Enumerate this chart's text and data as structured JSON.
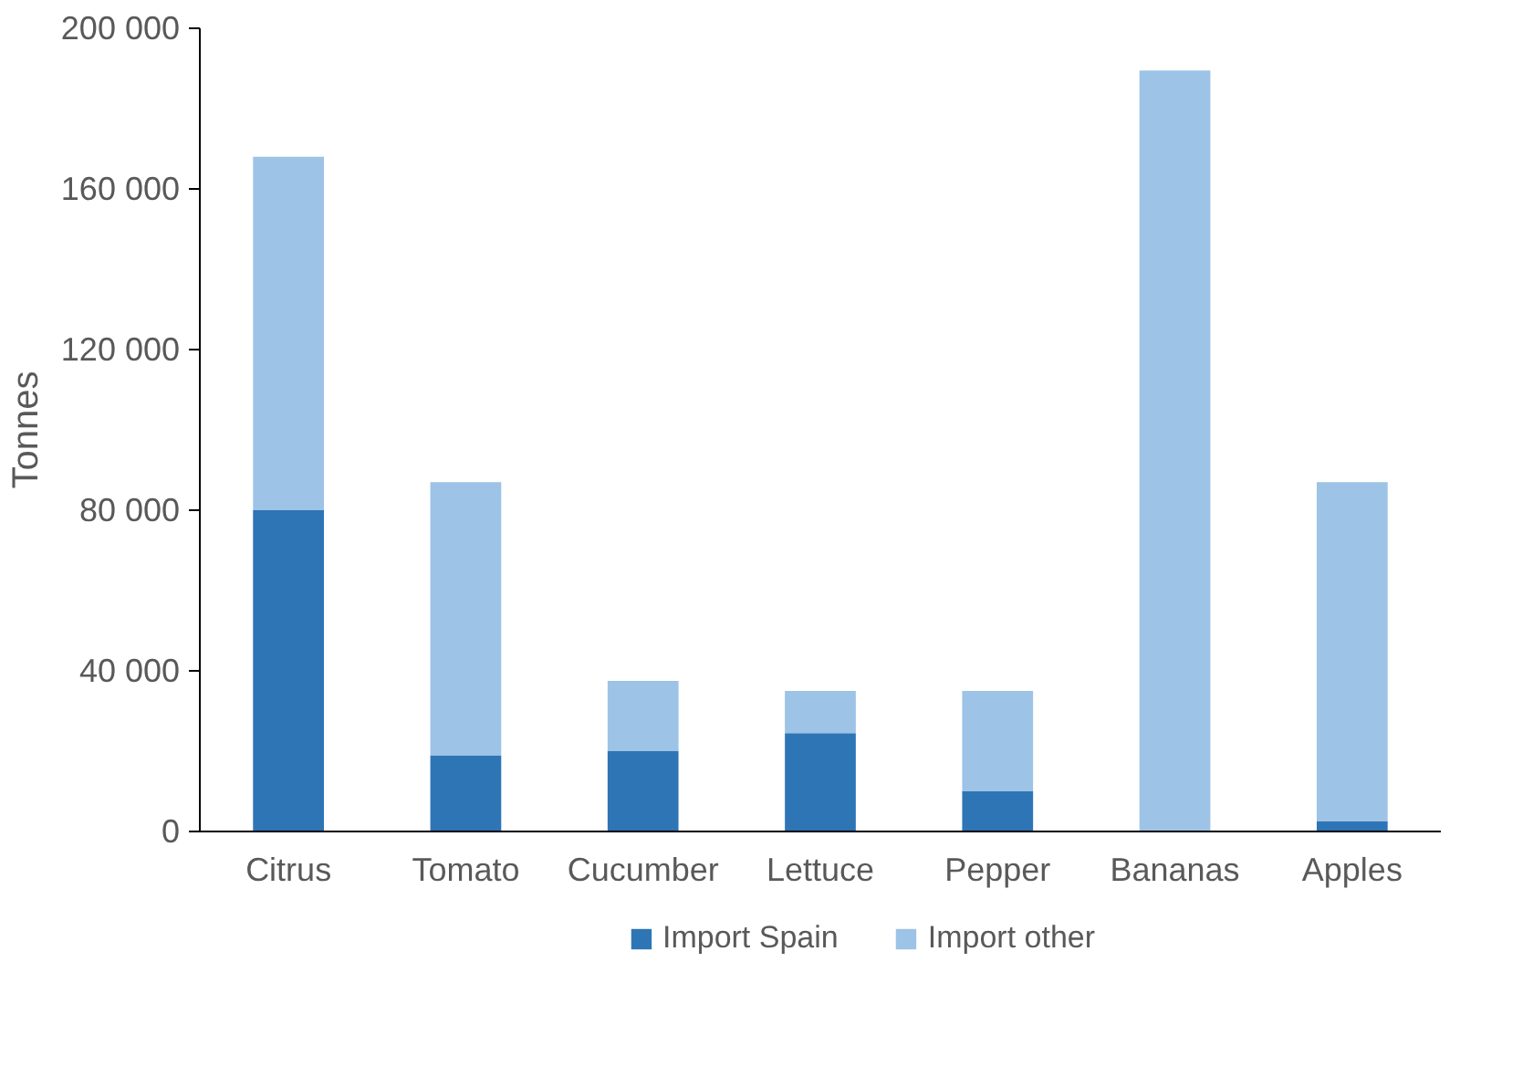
{
  "chart_data": {
    "type": "bar",
    "stacked": true,
    "ylabel": "Tonnes",
    "categories": [
      "Citrus",
      "Tomato",
      "Cucumber",
      "Lettuce",
      "Pepper",
      "Bananas",
      "Apples"
    ],
    "series": [
      {
        "name": "Import Spain",
        "color": "#2e75b6",
        "values": [
          80000,
          19000,
          20000,
          24500,
          10000,
          0,
          2500
        ]
      },
      {
        "name": "Import other",
        "color": "#9dc3e6",
        "values": [
          88000,
          68000,
          17500,
          10500,
          25000,
          189500,
          84500
        ]
      }
    ],
    "ylim": [
      0,
      200000
    ],
    "yticks": [
      {
        "value": 0,
        "label": "0"
      },
      {
        "value": 40000,
        "label": "40 000"
      },
      {
        "value": 80000,
        "label": "80 000"
      },
      {
        "value": 120000,
        "label": "120 000"
      },
      {
        "value": 160000,
        "label": "160 000"
      },
      {
        "value": 200000,
        "label": "200 000"
      }
    ],
    "grid": false,
    "legend": "bottom"
  }
}
